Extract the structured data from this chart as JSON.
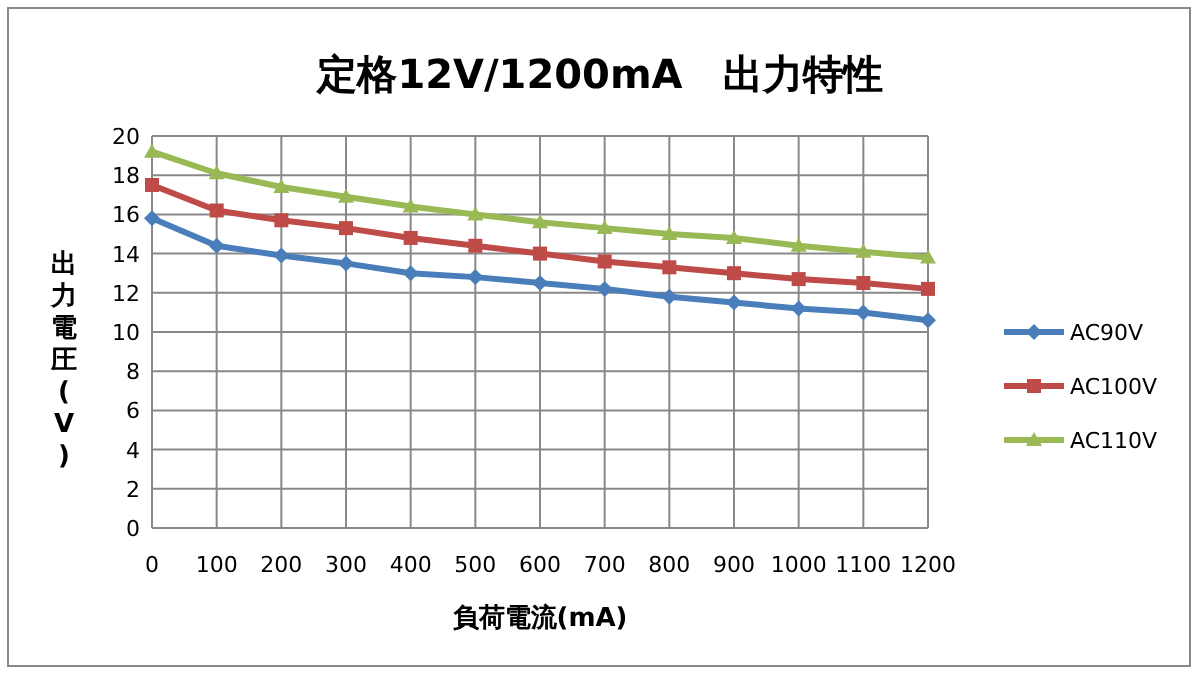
{
  "chart_data": {
    "type": "line",
    "title": "定格12V/1200mA　出力特性",
    "xlabel": "負荷電流(mA)",
    "ylabel": "出力電圧(V)",
    "x": [
      0,
      100,
      200,
      300,
      400,
      500,
      600,
      700,
      800,
      900,
      1000,
      1100,
      1200
    ],
    "xlim": [
      0,
      1200
    ],
    "xticks": [
      0,
      100,
      200,
      300,
      400,
      500,
      600,
      700,
      800,
      900,
      1000,
      1100,
      1200
    ],
    "ylim": [
      0,
      20
    ],
    "yticks": [
      0,
      2,
      4,
      6,
      8,
      10,
      12,
      14,
      16,
      18,
      20
    ],
    "grid": true,
    "legend": "right",
    "line_style": "solid",
    "series": [
      {
        "name": "AC90V",
        "color": "#4a7ebb",
        "marker": "diamond",
        "values": [
          15.8,
          14.4,
          13.9,
          13.5,
          13.0,
          12.8,
          12.5,
          12.2,
          11.8,
          11.5,
          11.2,
          11.0,
          10.6
        ]
      },
      {
        "name": "AC100V",
        "color": "#be4b48",
        "marker": "square",
        "values": [
          17.5,
          16.2,
          15.7,
          15.3,
          14.8,
          14.4,
          14.0,
          13.6,
          13.3,
          13.0,
          12.7,
          12.5,
          12.2
        ]
      },
      {
        "name": "AC110V",
        "color": "#98b954",
        "marker": "triangle",
        "values": [
          19.2,
          18.1,
          17.4,
          16.9,
          16.4,
          16.0,
          15.6,
          15.3,
          15.0,
          14.8,
          14.4,
          14.1,
          13.8
        ]
      }
    ]
  }
}
